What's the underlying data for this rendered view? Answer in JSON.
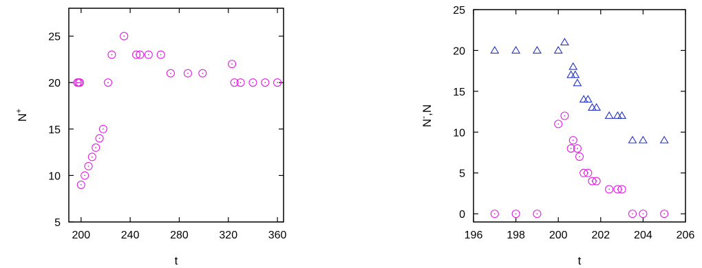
{
  "chart_data": [
    {
      "type": "scatter",
      "title": "",
      "xlabel": "t",
      "ylabel": "N",
      "ylabel_sup": "+",
      "xlim": [
        190,
        365
      ],
      "ylim": [
        5,
        28
      ],
      "xticks": [
        200,
        240,
        280,
        320,
        360
      ],
      "yticks": [
        5,
        10,
        15,
        20,
        25
      ],
      "grid": false,
      "series": [
        {
          "marker": "circle-dot",
          "color": "#e020e0",
          "points": [
            [
              197,
              20
            ],
            [
              198,
              20
            ],
            [
              199,
              20
            ],
            [
              200,
              9
            ],
            [
              203,
              10
            ],
            [
              206,
              11
            ],
            [
              209,
              12
            ],
            [
              212,
              13
            ],
            [
              215,
              14
            ],
            [
              218,
              15
            ],
            [
              222,
              20
            ],
            [
              225,
              23
            ],
            [
              235,
              25
            ],
            [
              245,
              23
            ],
            [
              248,
              23
            ],
            [
              255,
              23
            ],
            [
              265,
              23
            ],
            [
              273,
              21
            ],
            [
              287,
              21
            ],
            [
              299,
              21
            ],
            [
              323,
              22
            ],
            [
              325,
              20
            ],
            [
              330,
              20
            ],
            [
              340,
              20
            ],
            [
              350,
              20
            ],
            [
              360,
              20
            ]
          ]
        }
      ]
    },
    {
      "type": "scatter",
      "title": "",
      "xlabel": "t",
      "ylabel_parts": [
        "N",
        "-",
        ",N"
      ],
      "xlim": [
        196,
        206
      ],
      "ylim": [
        -1,
        25
      ],
      "xticks": [
        196,
        198,
        200,
        202,
        204,
        206
      ],
      "yticks": [
        0,
        5,
        10,
        15,
        20,
        25
      ],
      "grid": false,
      "series": [
        {
          "marker": "triangle",
          "color": "#2030c0",
          "points": [
            [
              197,
              20
            ],
            [
              198,
              20
            ],
            [
              199,
              20
            ],
            [
              200,
              20
            ],
            [
              200.3,
              21
            ],
            [
              200.6,
              17
            ],
            [
              200.7,
              18
            ],
            [
              200.8,
              17
            ],
            [
              200.9,
              16
            ],
            [
              201.2,
              14
            ],
            [
              201.4,
              14
            ],
            [
              201.6,
              13
            ],
            [
              201.8,
              13
            ],
            [
              202.4,
              12
            ],
            [
              202.8,
              12
            ],
            [
              203,
              12
            ],
            [
              203.5,
              9
            ],
            [
              204,
              9
            ],
            [
              205,
              9
            ]
          ]
        },
        {
          "marker": "circle-dot",
          "color": "#e020e0",
          "points": [
            [
              197,
              0
            ],
            [
              198,
              0
            ],
            [
              199,
              0
            ],
            [
              200,
              11
            ],
            [
              200.3,
              12
            ],
            [
              200.6,
              8
            ],
            [
              200.7,
              9
            ],
            [
              200.9,
              8
            ],
            [
              201,
              7
            ],
            [
              201.2,
              5
            ],
            [
              201.4,
              5
            ],
            [
              201.6,
              4
            ],
            [
              201.8,
              4
            ],
            [
              202.4,
              3
            ],
            [
              202.8,
              3
            ],
            [
              203,
              3
            ],
            [
              203.5,
              0
            ],
            [
              204,
              0
            ],
            [
              205,
              0
            ]
          ]
        }
      ]
    }
  ]
}
